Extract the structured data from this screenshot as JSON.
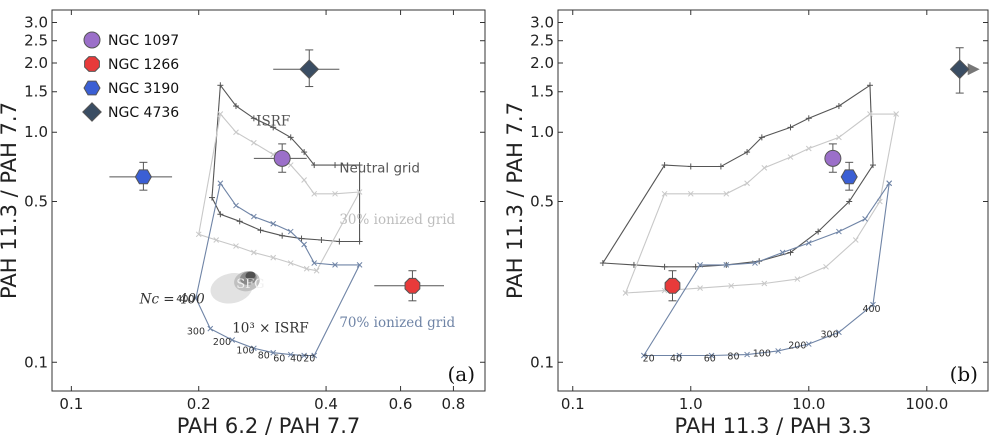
{
  "chart_data": [
    {
      "type": "scatter",
      "panel": "(a)",
      "xlabel": "PAH 6.2 / PAH 7.7",
      "ylabel": "PAH 11.3 / PAH 7.7",
      "xscale": "log",
      "yscale": "log",
      "xlim": [
        0.09,
        0.95
      ],
      "ylim": [
        0.075,
        3.4
      ],
      "xticks": [
        0.1,
        0.2,
        0.4,
        0.6,
        0.8
      ],
      "xtick_labels": [
        "0.1",
        "0.2",
        "0.4",
        "0.6",
        "0.8"
      ],
      "yticks": [
        0.1,
        0.5,
        1.0,
        1.5,
        2.0,
        2.5,
        3.0
      ],
      "ytick_labels": [
        "0.1",
        "0.5",
        "1.0",
        "1.5",
        "2.0",
        "2.5",
        "3.0"
      ],
      "legend": [
        {
          "name": "NGC 1097",
          "marker": "circle",
          "color": "#9b6fc9"
        },
        {
          "name": "NGC 1266",
          "marker": "octagon",
          "color": "#e83a3a"
        },
        {
          "name": "NGC 3190",
          "marker": "hexagon",
          "color": "#3b5fd4"
        },
        {
          "name": "NGC 4736",
          "marker": "diamond",
          "color": "#3a4d63"
        }
      ],
      "points": [
        {
          "name": "NGC 1097",
          "x": 0.315,
          "y": 0.77,
          "xerr": [
            0.045,
            0.045
          ],
          "yerr": [
            0.1,
            0.12
          ]
        },
        {
          "name": "NGC 1266",
          "x": 0.64,
          "y": 0.215,
          "xerr": [
            0.12,
            0.12
          ],
          "yerr": [
            0.03,
            0.035
          ]
        },
        {
          "name": "NGC 3190",
          "x": 0.148,
          "y": 0.64,
          "xerr": [
            0.025,
            0.025
          ],
          "yerr": [
            0.08,
            0.1
          ]
        },
        {
          "name": "NGC 4736",
          "x": 0.365,
          "y": 1.88,
          "xerr": [
            0.065,
            0.065
          ],
          "yerr": [
            0.3,
            0.4
          ]
        }
      ],
      "grids": [
        {
          "name": "Neutral grid",
          "color": "#555555",
          "lower": [
            [
              0.215,
              0.52
            ],
            [
              0.225,
              0.44
            ],
            [
              0.25,
              0.41
            ],
            [
              0.28,
              0.375
            ],
            [
              0.315,
              0.355
            ],
            [
              0.35,
              0.345
            ],
            [
              0.39,
              0.34
            ],
            [
              0.43,
              0.335
            ],
            [
              0.48,
              0.335
            ]
          ],
          "upper": [
            [
              0.225,
              1.6
            ],
            [
              0.245,
              1.3
            ],
            [
              0.27,
              1.15
            ],
            [
              0.3,
              1.05
            ],
            [
              0.33,
              0.95
            ],
            [
              0.355,
              0.82
            ],
            [
              0.375,
              0.72
            ],
            [
              0.42,
              0.72
            ],
            [
              0.48,
              0.72
            ]
          ]
        },
        {
          "name": "30% ionized grid",
          "color": "#c8c8c8",
          "lower": [
            [
              0.2,
              0.36
            ],
            [
              0.22,
              0.34
            ],
            [
              0.245,
              0.32
            ],
            [
              0.27,
              0.3
            ],
            [
              0.3,
              0.285
            ],
            [
              0.33,
              0.27
            ],
            [
              0.36,
              0.255
            ],
            [
              0.38,
              0.25
            ]
          ],
          "upper": [
            [
              0.225,
              1.2
            ],
            [
              0.245,
              1.0
            ],
            [
              0.27,
              0.9
            ],
            [
              0.3,
              0.8
            ],
            [
              0.33,
              0.72
            ],
            [
              0.355,
              0.62
            ],
            [
              0.375,
              0.54
            ],
            [
              0.42,
              0.54
            ],
            [
              0.48,
              0.55
            ]
          ]
        },
        {
          "name": "70% ionized grid",
          "color": "#6f84a6",
          "lower": [
            [
              0.197,
              0.19
            ],
            [
              0.213,
              0.14
            ],
            [
              0.24,
              0.125
            ],
            [
              0.27,
              0.115
            ],
            [
              0.3,
              0.11
            ],
            [
              0.33,
              0.108
            ],
            [
              0.355,
              0.107
            ],
            [
              0.375,
              0.107
            ]
          ],
          "upper": [
            [
              0.225,
              0.6
            ],
            [
              0.245,
              0.48
            ],
            [
              0.27,
              0.43
            ],
            [
              0.3,
              0.4
            ],
            [
              0.33,
              0.37
            ],
            [
              0.355,
              0.325
            ],
            [
              0.375,
              0.27
            ],
            [
              0.42,
              0.265
            ],
            [
              0.48,
              0.265
            ]
          ]
        }
      ],
      "nc_labels": [
        {
          "text": "400",
          "x": 0.186,
          "y": 0.183
        },
        {
          "text": "300",
          "x": 0.197,
          "y": 0.132
        },
        {
          "text": "200",
          "x": 0.227,
          "y": 0.119
        },
        {
          "text": "100",
          "x": 0.258,
          "y": 0.109
        },
        {
          "text": "80",
          "x": 0.285,
          "y": 0.104
        },
        {
          "text": "60",
          "x": 0.31,
          "y": 0.101
        },
        {
          "text": "40",
          "x": 0.34,
          "y": 0.101
        },
        {
          "text": "20",
          "x": 0.365,
          "y": 0.101
        }
      ],
      "annotations": [
        {
          "text": "ISRF",
          "x": 0.3,
          "y": 1.07,
          "color": "#555555",
          "style": "serif"
        },
        {
          "text": "Neutral grid",
          "x": 0.43,
          "y": 0.67,
          "color": "#555555",
          "style": "sans"
        },
        {
          "text": "30% ionized grid",
          "x": 0.43,
          "y": 0.4,
          "color": "#bdbdbd",
          "style": "serif"
        },
        {
          "text": "70% ionized grid",
          "x": 0.43,
          "y": 0.142,
          "color": "#6f84a6",
          "style": "serif"
        },
        {
          "text": "SFG",
          "x": 0.265,
          "y": 0.21,
          "color": "#f0f0f0",
          "style": "serif"
        },
        {
          "text": "Nc = 400",
          "x": 0.145,
          "y": 0.18,
          "color": "#333333",
          "style": "serif-italic"
        },
        {
          "text": "10³ × ISRF",
          "x": 0.24,
          "y": 0.135,
          "color": "#333333",
          "style": "serif"
        }
      ],
      "sfg_contours": [
        {
          "level": 1,
          "color": "#e2e2e2",
          "cx": 0.255,
          "cy": 0.215,
          "rx": 0.28,
          "ry": 0.27
        },
        {
          "level": 2,
          "color": "#c0c0c0",
          "cx": 0.26,
          "cy": 0.225,
          "rx": 0.17,
          "ry": 0.18
        },
        {
          "level": 3,
          "color": "#8a8a8a",
          "cx": 0.262,
          "cy": 0.232,
          "rx": 0.11,
          "ry": 0.12
        },
        {
          "level": 4,
          "color": "#505050",
          "cx": 0.265,
          "cy": 0.238,
          "rx": 0.065,
          "ry": 0.075
        }
      ]
    },
    {
      "type": "scatter",
      "panel": "(b)",
      "xlabel": "PAH 11.3 / PAH 3.3",
      "ylabel": "PAH 11.3 / PAH 7.7",
      "xscale": "log",
      "yscale": "log",
      "xlim": [
        0.075,
        330
      ],
      "ylim": [
        0.075,
        3.4
      ],
      "xticks": [
        0.1,
        1.0,
        10.0,
        100.0
      ],
      "xtick_labels": [
        "0.1",
        "1.0",
        "10.0",
        "100.0"
      ],
      "yticks": [
        0.1,
        0.5,
        1.0,
        1.5,
        2.0,
        2.5,
        3.0
      ],
      "ytick_labels": [
        "0.1",
        "0.5",
        "1.0",
        "1.5",
        "2.0",
        "2.5",
        "3.0"
      ],
      "points": [
        {
          "name": "NGC 1097",
          "x": 16.0,
          "y": 0.77,
          "xerr": [
            0,
            0
          ],
          "yerr": [
            0.1,
            0.12
          ]
        },
        {
          "name": "NGC 1266",
          "x": 0.7,
          "y": 0.215,
          "xerr": [
            0,
            0
          ],
          "yerr": [
            0.03,
            0.035
          ]
        },
        {
          "name": "NGC 3190",
          "x": 22.0,
          "y": 0.64,
          "xerr": [
            0,
            0
          ],
          "yerr": [
            0.08,
            0.1
          ]
        },
        {
          "name": "NGC 4736",
          "x": 190.0,
          "y": 1.88,
          "xerr": [
            0,
            0
          ],
          "yerr": [
            0.4,
            0.45
          ],
          "arrow": "lower limit in x"
        }
      ],
      "grids": [
        {
          "name": "Neutral grid",
          "color": "#555555",
          "lower": [
            [
              0.18,
              0.27
            ],
            [
              0.33,
              0.265
            ],
            [
              0.6,
              0.26
            ],
            [
              1.1,
              0.26
            ],
            [
              2.0,
              0.265
            ],
            [
              3.8,
              0.275
            ],
            [
              7.0,
              0.3
            ],
            [
              12.0,
              0.37
            ],
            [
              22.0,
              0.5
            ],
            [
              35.0,
              0.72
            ]
          ],
          "upper": [
            [
              0.6,
              0.72
            ],
            [
              1.0,
              0.71
            ],
            [
              1.8,
              0.71
            ],
            [
              3.0,
              0.82
            ],
            [
              4.0,
              0.95
            ],
            [
              7.0,
              1.05
            ],
            [
              10.0,
              1.15
            ],
            [
              18.0,
              1.3
            ],
            [
              33.0,
              1.6
            ]
          ]
        },
        {
          "name": "30% ionized grid",
          "color": "#c8c8c8",
          "lower": [
            [
              0.28,
              0.2
            ],
            [
              0.6,
              0.205
            ],
            [
              1.2,
              0.21
            ],
            [
              2.2,
              0.215
            ],
            [
              4.2,
              0.22
            ],
            [
              8.0,
              0.23
            ],
            [
              14.0,
              0.26
            ],
            [
              25.0,
              0.34
            ],
            [
              40.0,
              0.5
            ],
            [
              55.0,
              1.2
            ]
          ],
          "upper": [
            [
              0.6,
              0.54
            ],
            [
              1.0,
              0.54
            ],
            [
              2.0,
              0.54
            ],
            [
              3.0,
              0.6
            ],
            [
              4.2,
              0.7
            ],
            [
              7.0,
              0.78
            ],
            [
              10.0,
              0.85
            ],
            [
              18.0,
              0.95
            ],
            [
              33.0,
              1.2
            ]
          ]
        },
        {
          "name": "70% ionized grid",
          "color": "#6f84a6",
          "lower": [
            [
              0.4,
              0.107
            ],
            [
              0.8,
              0.107
            ],
            [
              1.5,
              0.107
            ],
            [
              3.0,
              0.108
            ],
            [
              5.5,
              0.112
            ],
            [
              10.0,
              0.12
            ],
            [
              18.0,
              0.135
            ],
            [
              35.0,
              0.178
            ],
            [
              48.0,
              0.6
            ]
          ],
          "upper": [
            [
              1.2,
              0.265
            ],
            [
              2.0,
              0.265
            ],
            [
              3.5,
              0.27
            ],
            [
              6.0,
              0.3
            ],
            [
              10.0,
              0.33
            ],
            [
              18.0,
              0.37
            ],
            [
              30.0,
              0.42
            ],
            [
              48.0,
              0.6
            ]
          ]
        }
      ],
      "nc_labels": [
        {
          "text": "20",
          "x": 0.44,
          "y": 0.101
        },
        {
          "text": "40",
          "x": 0.75,
          "y": 0.101
        },
        {
          "text": "60",
          "x": 1.45,
          "y": 0.101
        },
        {
          "text": "80",
          "x": 2.3,
          "y": 0.103
        },
        {
          "text": "100",
          "x": 4.0,
          "y": 0.106
        },
        {
          "text": "200",
          "x": 8.0,
          "y": 0.115
        },
        {
          "text": "300",
          "x": 15.0,
          "y": 0.128
        },
        {
          "text": "400",
          "x": 34.0,
          "y": 0.165
        }
      ]
    }
  ]
}
